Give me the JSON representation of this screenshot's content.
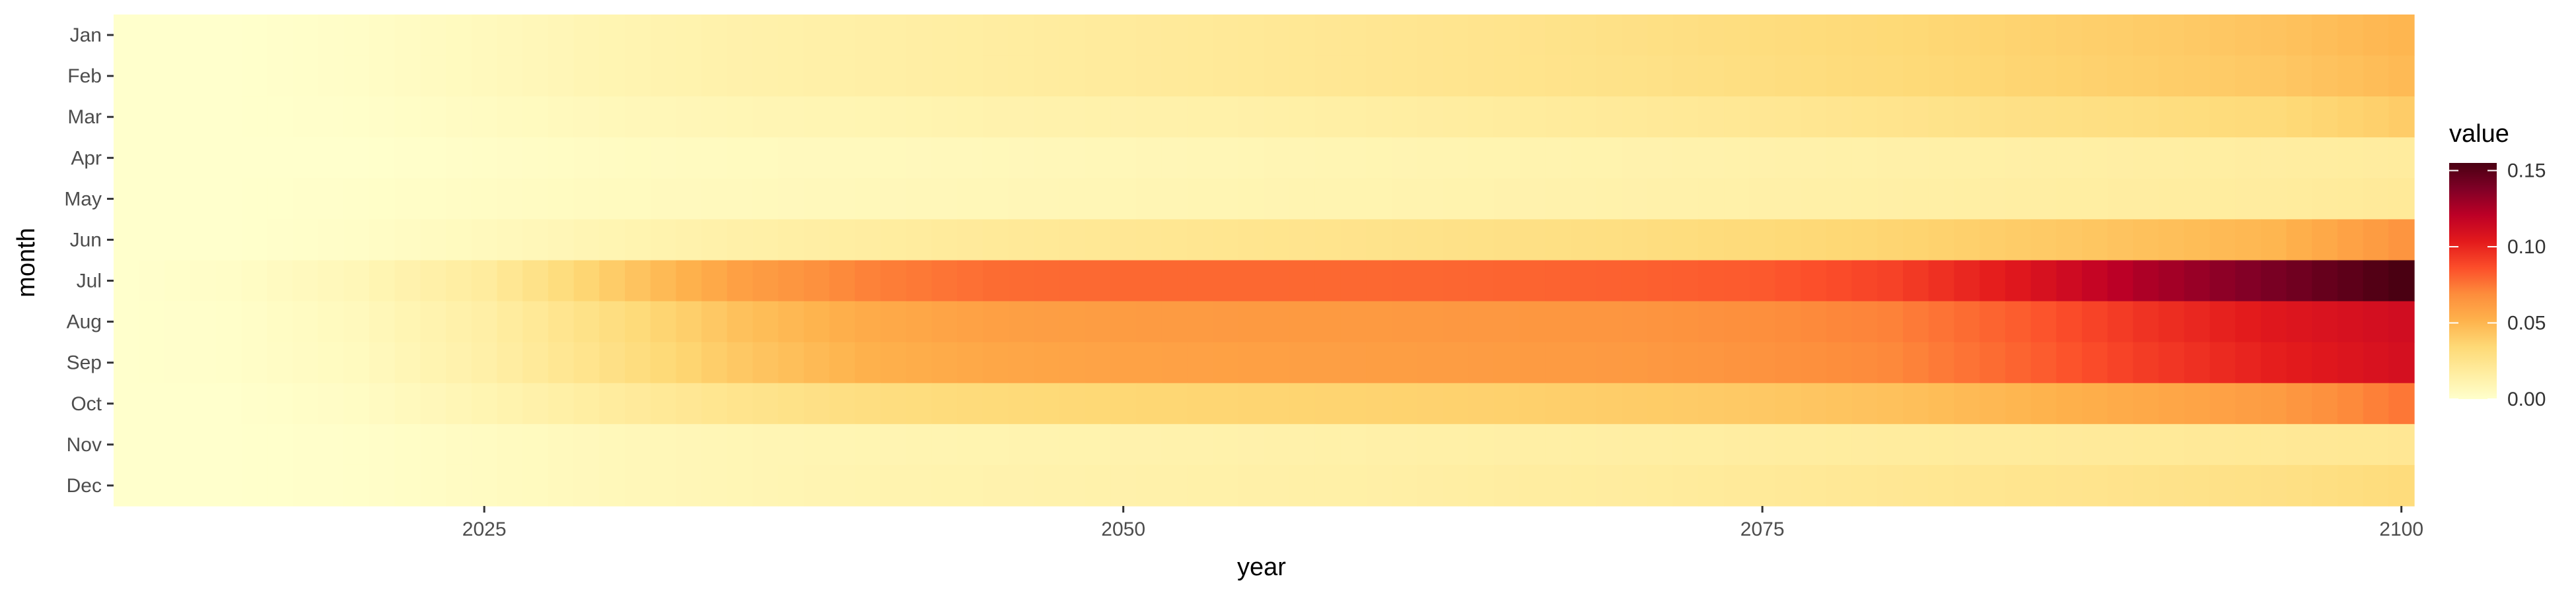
{
  "chart_data": {
    "type": "heatmap",
    "title": "",
    "xlabel": "year",
    "ylabel": "month",
    "x_range": [
      2011,
      2100
    ],
    "xticks": [
      2025,
      2050,
      2075,
      2100
    ],
    "months": [
      "Jan",
      "Feb",
      "Mar",
      "Apr",
      "May",
      "Jun",
      "Jul",
      "Aug",
      "Sep",
      "Oct",
      "Nov",
      "Dec"
    ],
    "value_range": [
      0,
      0.155
    ],
    "legend": {
      "title": "value",
      "ticks": [
        0.0,
        0.05,
        0.1,
        0.15
      ],
      "tick_labels": [
        "0.00",
        "0.05",
        "0.10",
        "0.15"
      ],
      "placement": "right"
    },
    "colorscale": [
      "#ffffcc",
      "#ffeda0",
      "#fed976",
      "#feb24c",
      "#fd8d3c",
      "#fc4e2a",
      "#e31a1c",
      "#bd0026",
      "#800026",
      "#4a0012"
    ],
    "profile_years": [
      2011,
      2015,
      2020,
      2025,
      2030,
      2035,
      2040,
      2045,
      2050,
      2055,
      2060,
      2065,
      2070,
      2075,
      2080,
      2085,
      2090,
      2095,
      2100
    ],
    "month_profiles": {
      "Jan": [
        0.0,
        0.0,
        0.002,
        0.006,
        0.01,
        0.013,
        0.015,
        0.017,
        0.019,
        0.021,
        0.023,
        0.025,
        0.028,
        0.031,
        0.034,
        0.037,
        0.04,
        0.044,
        0.05
      ],
      "Feb": [
        0.0,
        0.0,
        0.002,
        0.006,
        0.01,
        0.013,
        0.015,
        0.017,
        0.019,
        0.021,
        0.023,
        0.025,
        0.027,
        0.03,
        0.033,
        0.036,
        0.039,
        0.042,
        0.048
      ],
      "Mar": [
        0.0,
        0.0,
        0.001,
        0.004,
        0.007,
        0.009,
        0.01,
        0.012,
        0.013,
        0.014,
        0.016,
        0.018,
        0.02,
        0.022,
        0.025,
        0.028,
        0.03,
        0.033,
        0.04
      ],
      "Apr": [
        0.0,
        0.0,
        0.0,
        0.002,
        0.004,
        0.005,
        0.006,
        0.007,
        0.008,
        0.009,
        0.01,
        0.011,
        0.012,
        0.013,
        0.014,
        0.015,
        0.016,
        0.017,
        0.018
      ],
      "May": [
        0.0,
        0.0,
        0.001,
        0.003,
        0.005,
        0.006,
        0.007,
        0.008,
        0.009,
        0.01,
        0.011,
        0.012,
        0.013,
        0.014,
        0.015,
        0.016,
        0.017,
        0.018,
        0.02
      ],
      "Jun": [
        0.0,
        0.0,
        0.002,
        0.006,
        0.01,
        0.014,
        0.017,
        0.02,
        0.022,
        0.024,
        0.026,
        0.028,
        0.03,
        0.033,
        0.036,
        0.04,
        0.045,
        0.05,
        0.065
      ],
      "Jul": [
        0.0,
        0.002,
        0.008,
        0.018,
        0.04,
        0.06,
        0.072,
        0.078,
        0.079,
        0.079,
        0.079,
        0.08,
        0.081,
        0.083,
        0.09,
        0.105,
        0.125,
        0.14,
        0.155
      ],
      "Aug": [
        0.0,
        0.001,
        0.006,
        0.015,
        0.03,
        0.045,
        0.055,
        0.06,
        0.062,
        0.063,
        0.063,
        0.064,
        0.065,
        0.068,
        0.072,
        0.082,
        0.095,
        0.105,
        0.112
      ],
      "Sep": [
        0.0,
        0.001,
        0.005,
        0.014,
        0.028,
        0.042,
        0.052,
        0.057,
        0.059,
        0.06,
        0.061,
        0.062,
        0.063,
        0.066,
        0.07,
        0.08,
        0.092,
        0.102,
        0.11
      ],
      "Oct": [
        0.0,
        0.0,
        0.003,
        0.01,
        0.018,
        0.025,
        0.03,
        0.033,
        0.035,
        0.036,
        0.037,
        0.038,
        0.04,
        0.042,
        0.045,
        0.05,
        0.056,
        0.062,
        0.075
      ],
      "Nov": [
        0.0,
        0.0,
        0.001,
        0.004,
        0.007,
        0.009,
        0.01,
        0.011,
        0.012,
        0.013,
        0.014,
        0.015,
        0.016,
        0.017,
        0.018,
        0.019,
        0.02,
        0.021,
        0.022
      ],
      "Dec": [
        0.0,
        0.0,
        0.001,
        0.004,
        0.007,
        0.009,
        0.011,
        0.012,
        0.013,
        0.014,
        0.015,
        0.017,
        0.018,
        0.02,
        0.022,
        0.024,
        0.026,
        0.028,
        0.032
      ]
    }
  }
}
